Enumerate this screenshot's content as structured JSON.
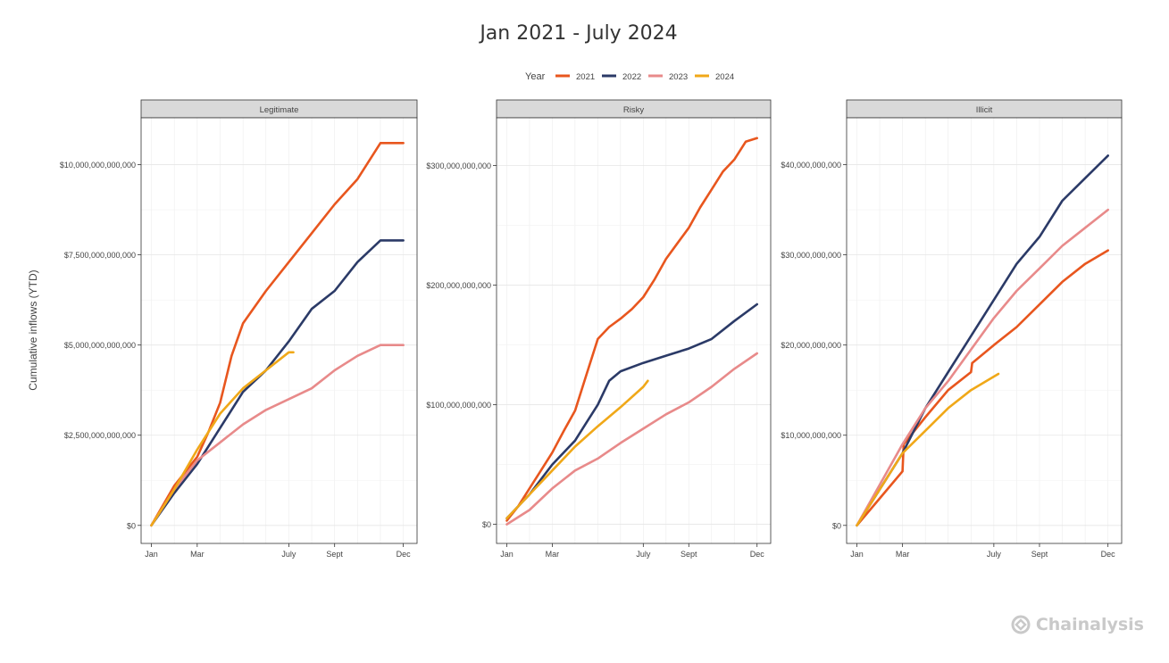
{
  "title": "Jan 2021 - July 2024",
  "legend": {
    "title": "Year",
    "items": [
      {
        "label": "2021",
        "color": "#e8561e"
      },
      {
        "label": "2022",
        "color": "#2b3a67"
      },
      {
        "label": "2023",
        "color": "#e88a8a"
      },
      {
        "label": "2024",
        "color": "#f0a818"
      }
    ]
  },
  "y_axis_label": "Cumulative inflows (YTD)",
  "brand": {
    "name": "Chainalysis",
    "icon": "chainalysis-logo-icon"
  },
  "chart_data": [
    {
      "type": "line",
      "panel": "Legitimate",
      "x_ticks": [
        {
          "label": "Jan",
          "m": 0
        },
        {
          "label": "Mar",
          "m": 2
        },
        {
          "label": "July",
          "m": 6
        },
        {
          "label": "Sept",
          "m": 8
        },
        {
          "label": "Dec",
          "m": 11
        }
      ],
      "y_ticks": [
        {
          "label": "$0",
          "v": 0
        },
        {
          "label": "$2,500,000,000,000",
          "v": 2500000000000
        },
        {
          "label": "$5,000,000,000,000",
          "v": 5000000000000
        },
        {
          "label": "$7,500,000,000,000",
          "v": 7500000000000
        },
        {
          "label": "$10,000,000,000,000",
          "v": 10000000000000
        }
      ],
      "ylim": [
        -500000000000,
        11300000000000
      ],
      "xlim": [
        -0.45,
        11.6
      ],
      "grid": true,
      "series": [
        {
          "name": "2021",
          "x": [
            0,
            1,
            2,
            2.5,
            3,
            3.5,
            4,
            5,
            6,
            7,
            8,
            9,
            10,
            11
          ],
          "y": [
            0,
            1100000000000,
            1900000000000,
            2600000000000,
            3400000000000,
            4700000000000,
            5600000000000,
            6500000000000,
            7300000000000,
            8100000000000,
            8900000000000,
            9600000000000,
            10600000000000,
            10600000000000
          ]
        },
        {
          "name": "2022",
          "x": [
            0,
            1,
            2,
            2.5,
            3,
            3.5,
            4,
            5,
            6,
            7,
            8,
            9,
            10,
            11
          ],
          "y": [
            0,
            900000000000,
            1700000000000,
            2200000000000,
            2700000000000,
            3200000000000,
            3700000000000,
            4300000000000,
            5100000000000,
            6000000000000,
            6500000000000,
            7300000000000,
            7900000000000,
            7900000000000
          ]
        },
        {
          "name": "2023",
          "x": [
            0,
            1,
            2,
            3,
            4,
            5,
            6,
            7,
            8,
            9,
            10,
            11
          ],
          "y": [
            0,
            1000000000000,
            1800000000000,
            2300000000000,
            2800000000000,
            3200000000000,
            3500000000000,
            3800000000000,
            4300000000000,
            4700000000000,
            5000000000000,
            5000000000000
          ]
        },
        {
          "name": "2024",
          "x": [
            0,
            1,
            2,
            3,
            4,
            5,
            6,
            6.2
          ],
          "y": [
            0,
            1000000000000,
            2100000000000,
            3100000000000,
            3800000000000,
            4300000000000,
            4800000000000,
            4800000000000
          ]
        }
      ]
    },
    {
      "type": "line",
      "panel": "Risky",
      "x_ticks": [
        {
          "label": "Jan",
          "m": 0
        },
        {
          "label": "Mar",
          "m": 2
        },
        {
          "label": "July",
          "m": 6
        },
        {
          "label": "Sept",
          "m": 8
        },
        {
          "label": "Dec",
          "m": 11
        }
      ],
      "y_ticks": [
        {
          "label": "$0",
          "v": 0
        },
        {
          "label": "$100,000,000,000",
          "v": 100000000000
        },
        {
          "label": "$200,000,000,000",
          "v": 200000000000
        },
        {
          "label": "$300,000,000,000",
          "v": 300000000000
        }
      ],
      "ylim": [
        -16000000000,
        340000000000
      ],
      "xlim": [
        -0.45,
        11.6
      ],
      "grid": true,
      "series": [
        {
          "name": "2021",
          "x": [
            0,
            0.5,
            1,
            1.5,
            2,
            2.5,
            3,
            3.5,
            4,
            4.5,
            5,
            5.5,
            6,
            6.5,
            7,
            7.5,
            8,
            8.5,
            9,
            9.5,
            10,
            10.5,
            11
          ],
          "y": [
            3000000000,
            15000000000,
            30000000000,
            45000000000,
            60000000000,
            78000000000,
            95000000000,
            125000000000,
            155000000000,
            165000000000,
            172000000000,
            180000000000,
            190000000000,
            205000000000,
            222000000000,
            235000000000,
            248000000000,
            265000000000,
            280000000000,
            295000000000,
            305000000000,
            320000000000,
            323000000000
          ]
        },
        {
          "name": "2022",
          "x": [
            0,
            1,
            2,
            3,
            3.5,
            4,
            4.5,
            5,
            6,
            7,
            8,
            9,
            10,
            11
          ],
          "y": [
            5000000000,
            25000000000,
            50000000000,
            70000000000,
            85000000000,
            100000000000,
            120000000000,
            128000000000,
            135000000000,
            141000000000,
            147000000000,
            155000000000,
            170000000000,
            184000000000
          ]
        },
        {
          "name": "2023",
          "x": [
            0,
            1,
            2,
            3,
            4,
            5,
            6,
            7,
            8,
            9,
            10,
            11
          ],
          "y": [
            0,
            12000000000,
            30000000000,
            45000000000,
            55000000000,
            68000000000,
            80000000000,
            92000000000,
            102000000000,
            115000000000,
            130000000000,
            143000000000
          ]
        },
        {
          "name": "2024",
          "x": [
            0,
            1,
            2,
            3,
            4,
            5,
            6,
            6.2
          ],
          "y": [
            5000000000,
            25000000000,
            45000000000,
            65000000000,
            82000000000,
            98000000000,
            115000000000,
            120000000000
          ]
        }
      ]
    },
    {
      "type": "line",
      "panel": "Illicit",
      "x_ticks": [
        {
          "label": "Jan",
          "m": 0
        },
        {
          "label": "Mar",
          "m": 2
        },
        {
          "label": "July",
          "m": 6
        },
        {
          "label": "Sept",
          "m": 8
        },
        {
          "label": "Dec",
          "m": 11
        }
      ],
      "y_ticks": [
        {
          "label": "$0",
          "v": 0
        },
        {
          "label": "$10,000,000,000",
          "v": 10000000000
        },
        {
          "label": "$20,000,000,000",
          "v": 20000000000
        },
        {
          "label": "$30,000,000,000",
          "v": 30000000000
        },
        {
          "label": "$40,000,000,000",
          "v": 40000000000
        }
      ],
      "ylim": [
        -2000000000,
        45200000000
      ],
      "xlim": [
        -0.45,
        11.6
      ],
      "grid": true,
      "series": [
        {
          "name": "2021",
          "x": [
            0,
            1,
            2,
            2.05,
            3,
            4,
            5,
            5.05,
            6,
            7,
            8,
            9,
            10,
            11
          ],
          "y": [
            0,
            3000000000,
            6000000000,
            9000000000,
            12000000000,
            15000000000,
            17000000000,
            18000000000,
            20000000000,
            22000000000,
            24500000000,
            27000000000,
            29000000000,
            30500000000
          ]
        },
        {
          "name": "2022",
          "x": [
            0,
            1,
            2,
            3,
            4,
            5,
            6,
            7,
            8,
            9,
            10,
            11
          ],
          "y": [
            0,
            4000000000,
            8000000000,
            13000000000,
            17000000000,
            21000000000,
            25000000000,
            29000000000,
            32000000000,
            36000000000,
            38500000000,
            41000000000
          ]
        },
        {
          "name": "2023",
          "x": [
            0,
            1,
            2,
            3,
            4,
            5,
            6,
            7,
            8,
            9,
            10,
            11
          ],
          "y": [
            0,
            4500000000,
            9000000000,
            13000000000,
            16000000000,
            19500000000,
            23000000000,
            26000000000,
            28500000000,
            31000000000,
            33000000000,
            35000000000
          ]
        },
        {
          "name": "2024",
          "x": [
            0,
            1,
            2,
            3,
            4,
            5,
            6,
            6.2
          ],
          "y": [
            0,
            4000000000,
            8000000000,
            10500000000,
            13000000000,
            15000000000,
            16500000000,
            16800000000
          ]
        }
      ]
    }
  ]
}
